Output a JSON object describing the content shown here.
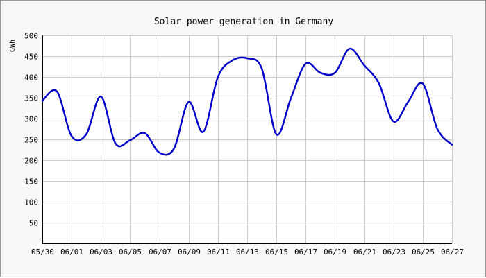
{
  "chart_data": {
    "type": "line",
    "title": "Solar power generation in Germany",
    "xlabel": "",
    "ylabel": "GWh",
    "ylim": [
      0,
      500
    ],
    "yticks": [
      50,
      100,
      150,
      200,
      250,
      300,
      350,
      400,
      450,
      500
    ],
    "xlim": [
      "2023-05-30",
      "2023-06-27"
    ],
    "x_tick_labels": [
      "05/30",
      "06/01",
      "06/03",
      "06/05",
      "06/07",
      "06/09",
      "06/11",
      "06/13",
      "06/15",
      "06/17",
      "06/19",
      "06/21",
      "06/23",
      "06/25",
      "06/27"
    ],
    "grid": true,
    "series": [
      {
        "color": "#0000cc",
        "x": [
          "2023-05-30",
          "2023-05-31",
          "2023-06-01",
          "2023-06-02",
          "2023-06-03",
          "2023-06-04",
          "2023-06-05",
          "2023-06-06",
          "2023-06-07",
          "2023-06-08",
          "2023-06-09",
          "2023-06-10",
          "2023-06-11",
          "2023-06-12",
          "2023-06-13",
          "2023-06-14",
          "2023-06-15",
          "2023-06-16",
          "2023-06-17",
          "2023-06-18",
          "2023-06-19",
          "2023-06-20",
          "2023-06-21",
          "2023-06-22",
          "2023-06-23",
          "2023-06-24",
          "2023-06-25",
          "2023-06-26",
          "2023-06-27"
        ],
        "values": [
          343,
          365,
          258,
          262,
          353,
          240,
          248,
          265,
          218,
          228,
          340,
          268,
          400,
          440,
          445,
          420,
          262,
          350,
          432,
          410,
          410,
          468,
          428,
          385,
          293,
          340,
          384,
          275,
          237
        ]
      }
    ]
  }
}
